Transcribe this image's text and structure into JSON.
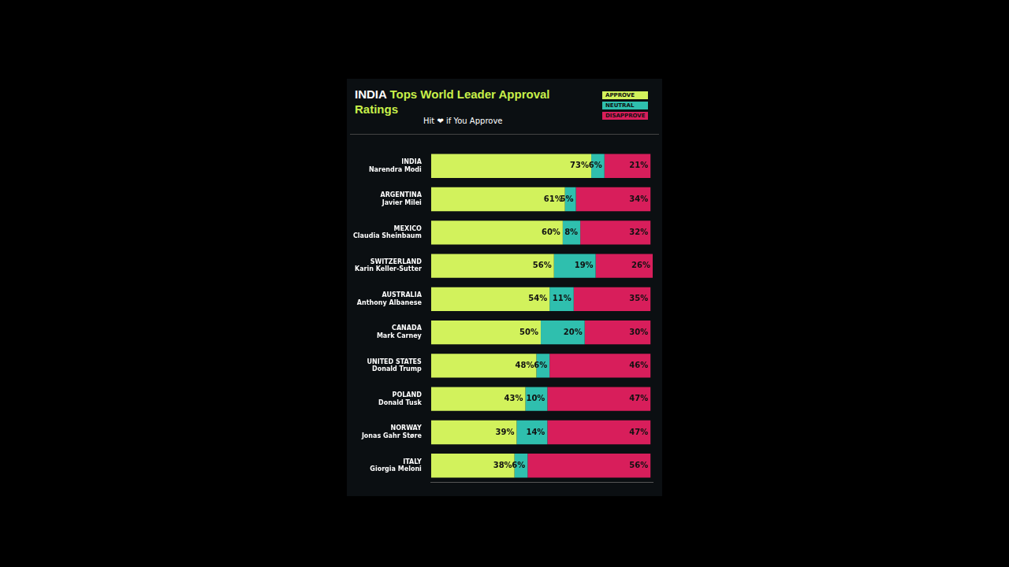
{
  "chart_data": {
    "type": "bar",
    "title": "INDIA Tops World Leader Approval Ratings",
    "subtitle": "Hit ❤ if You Approve",
    "orientation": "horizontal",
    "stacked": true,
    "grid": false,
    "legend": "top right",
    "data_labels": true,
    "tick_labels": "y",
    "categories": [
      "INDIA",
      "ARGENTINA",
      "MEXICO",
      "SWITZERLAND",
      "AUSTRALIA",
      "CANADA",
      "UNITED STATES",
      "POLAND",
      "NORWAY",
      "ITALY"
    ],
    "leaders": [
      "Narendra Modi",
      "Javier Milei",
      "Claudia Sheinbaum",
      "Karin Keller-Sutter",
      "Anthony Albanese",
      "Mark Carney",
      "Donald Trump",
      "Donald Tusk",
      "Jonas Gahr Støre",
      "Giorgia Meloni"
    ],
    "xlim": [
      0,
      101
    ],
    "series": [
      {
        "name": "APPROVE",
        "color": "#d2f25c",
        "values": [
          73,
          61,
          60,
          56,
          54,
          50,
          48,
          43,
          39,
          38
        ],
        "value_labels": [
          "73%",
          "61%",
          "60%",
          "56%",
          "54%",
          "50%",
          "48%",
          "43%",
          "39%",
          "38%"
        ]
      },
      {
        "name": "NEUTRAL",
        "color": "#2fbfae",
        "values": [
          6,
          5,
          8,
          19,
          11,
          20,
          6,
          10,
          14,
          6
        ],
        "value_labels": [
          "6%",
          "5%",
          "8%",
          "19%",
          "11%",
          "20%",
          "6%",
          "10%",
          "14%",
          "6%"
        ]
      },
      {
        "name": "DISAPPROVE",
        "color": "#d81e5b",
        "values": [
          21,
          34,
          32,
          26,
          35,
          30,
          46,
          47,
          47,
          56
        ],
        "value_labels": [
          "21%",
          "34%",
          "32%",
          "26%",
          "35%",
          "30%",
          "46%",
          "47%",
          "47%",
          "56%"
        ]
      }
    ]
  }
}
